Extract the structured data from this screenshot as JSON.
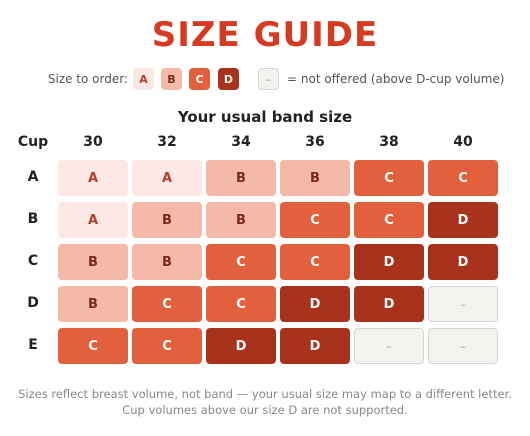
{
  "title": "SIZE GUIDE",
  "legend": {
    "label": "Size to order:",
    "sizes": [
      "A",
      "B",
      "C",
      "D"
    ],
    "na": "–",
    "na_label": "= not offered (above D-cup volume)"
  },
  "grid": {
    "heading": "Your usual band size",
    "corner": "Cup",
    "columns": [
      "30",
      "32",
      "34",
      "36",
      "38",
      "40"
    ],
    "rows": [
      {
        "cup": "A",
        "cells": [
          "A",
          "A",
          "B",
          "B",
          "C",
          "C"
        ]
      },
      {
        "cup": "B",
        "cells": [
          "A",
          "B",
          "B",
          "C",
          "C",
          "D"
        ]
      },
      {
        "cup": "C",
        "cells": [
          "B",
          "B",
          "C",
          "C",
          "D",
          "D"
        ]
      },
      {
        "cup": "D",
        "cells": [
          "B",
          "C",
          "C",
          "D",
          "D",
          "–"
        ]
      },
      {
        "cup": "E",
        "cells": [
          "C",
          "C",
          "D",
          "D",
          "–",
          "–"
        ]
      }
    ]
  },
  "footer": [
    "Sizes reflect breast volume, not band — your usual size may map to a different letter.",
    "Cup volumes above our size D are not supported."
  ]
}
